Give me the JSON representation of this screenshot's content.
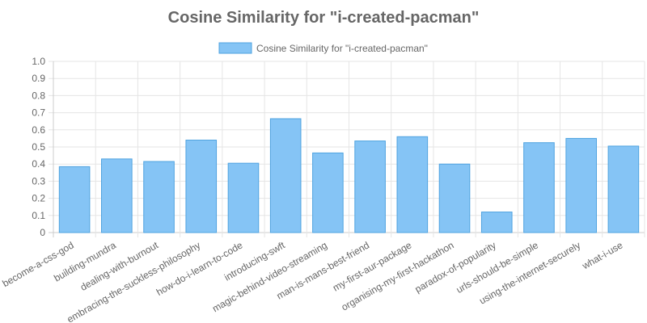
{
  "chart_data": {
    "type": "bar",
    "title": "Cosine Similarity for \"i-created-pacman\"",
    "legend": {
      "position": "top",
      "entries": [
        "Cosine Similarity for \"i-created-pacman\""
      ]
    },
    "categories": [
      "become-a-css-god",
      "building-mundra",
      "dealing-with-burnout",
      "embracing-the-suckless-philosophy",
      "how-do-i-learn-to-code",
      "introducing-swft",
      "magic-behind-video-streaming",
      "man-is-mans-best-friend",
      "my-first-aur-package",
      "organising-my-first-hackathon",
      "paradox-of-popularity",
      "urls-should-be-simple",
      "using-the-internet-securely",
      "what-i-use"
    ],
    "series": [
      {
        "name": "Cosine Similarity for \"i-created-pacman\"",
        "values": [
          0.385,
          0.43,
          0.415,
          0.54,
          0.405,
          0.665,
          0.465,
          0.535,
          0.56,
          0.4,
          0.12,
          0.525,
          0.55,
          0.505
        ]
      }
    ],
    "ylim": [
      0,
      1
    ],
    "yticks": [
      "0",
      "0.1",
      "0.2",
      "0.3",
      "0.4",
      "0.5",
      "0.6",
      "0.7",
      "0.8",
      "0.9",
      "1.0"
    ],
    "grid": true,
    "colors": {
      "bar_fill": "#85c4f5",
      "bar_stroke": "#4fa3e0"
    }
  }
}
